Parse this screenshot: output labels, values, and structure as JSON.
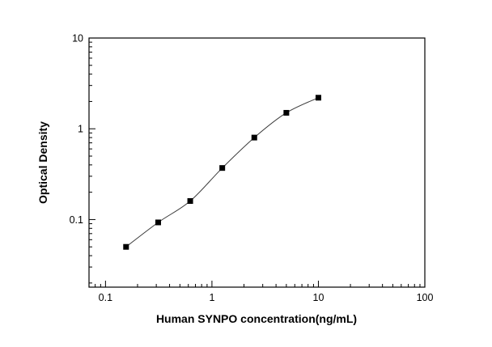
{
  "chart_data": {
    "type": "scatter",
    "title": "",
    "xlabel": "Human SYNPO concentration(ng/mL)",
    "ylabel": "Optical Density",
    "x": [
      0.156,
      0.3125,
      0.625,
      1.25,
      2.5,
      5,
      10
    ],
    "y": [
      0.05,
      0.093,
      0.16,
      0.37,
      0.8,
      1.5,
      2.2
    ],
    "xscale": "log",
    "yscale": "log",
    "xlim": [
      0.07,
      100
    ],
    "ylim": [
      0.018,
      10
    ],
    "x_major_ticks": [
      0.1,
      1,
      10,
      100
    ],
    "y_major_ticks": [
      0.1,
      1,
      10
    ],
    "x_tick_labels": [
      "0.1",
      "1",
      "10",
      "100"
    ],
    "y_tick_labels": [
      "0.1",
      "1",
      "10"
    ],
    "marker": "square",
    "marker_color": "#000000",
    "line_color": "#3a3a3a",
    "frame_color": "#000000",
    "grid": false,
    "legend": "none"
  }
}
